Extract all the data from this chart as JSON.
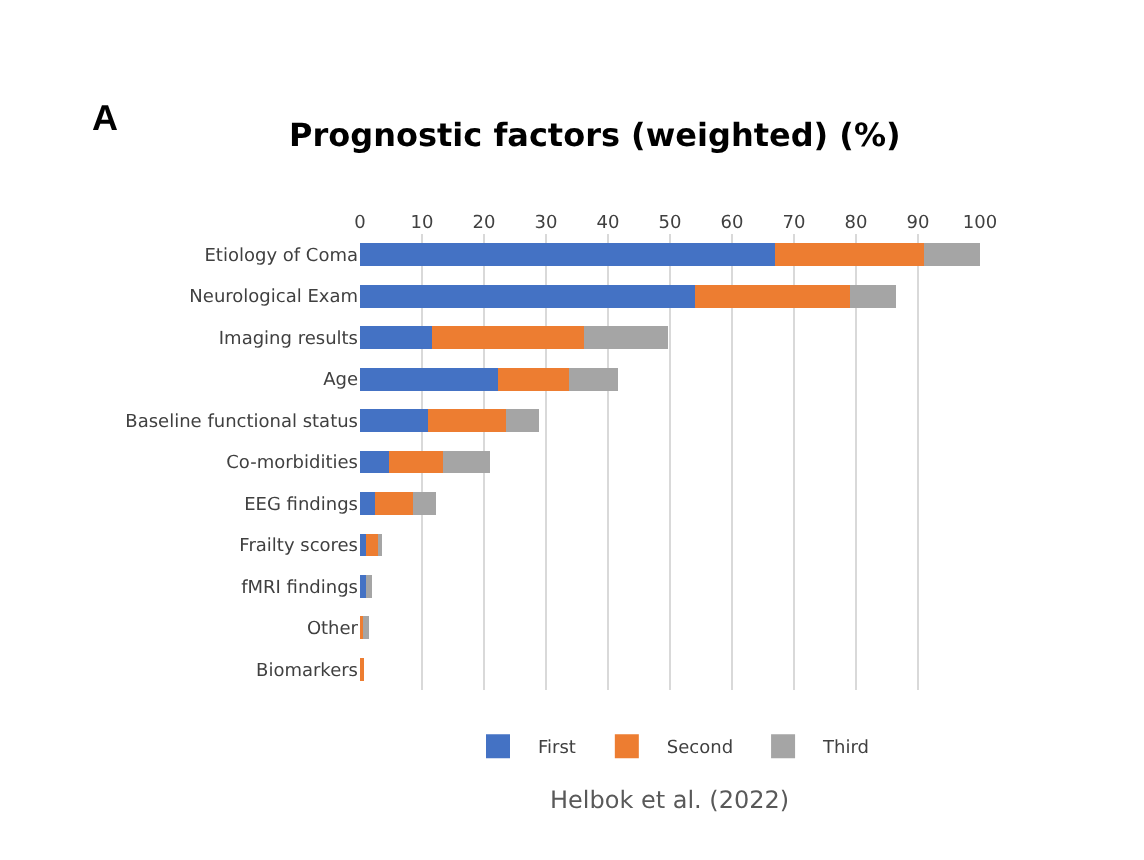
{
  "chart_data": {
    "type": "bar",
    "orientation": "horizontal",
    "stacked": true,
    "title": "Prognostic factors (weighted) (%)",
    "subtitle": "A",
    "categories": [
      "Etiology of Coma",
      "Neurological Exam",
      "Imaging results",
      "Age",
      "Baseline functional status",
      "Co-morbidities",
      "EEG findings",
      "Frailty scores",
      "fMRI findings",
      "Other",
      "Biomarkers"
    ],
    "series": [
      {
        "name": "First",
        "color": "#4472c4",
        "values": [
          67,
          54,
          11.6,
          22.3,
          10.9,
          4.7,
          2.4,
          0.9,
          1.0,
          0,
          0
        ]
      },
      {
        "name": "Second",
        "color": "#ed7d31",
        "values": [
          24,
          25,
          24.5,
          11.4,
          12.7,
          8.7,
          6.1,
          2.1,
          0,
          0.5,
          0.7
        ]
      },
      {
        "name": "Third",
        "color": "#a5a5a5",
        "values": [
          9,
          7.5,
          13.6,
          7.9,
          5.3,
          7.6,
          3.8,
          0.3,
          0.9,
          1.0,
          0
        ]
      }
    ],
    "xlim": [
      0,
      100
    ],
    "xticks": [
      0,
      10,
      20,
      30,
      40,
      50,
      60,
      70,
      80,
      90,
      100
    ],
    "grid": "x",
    "legend": "bottom",
    "annotations": [
      "Helbok et al. (2022)"
    ]
  }
}
